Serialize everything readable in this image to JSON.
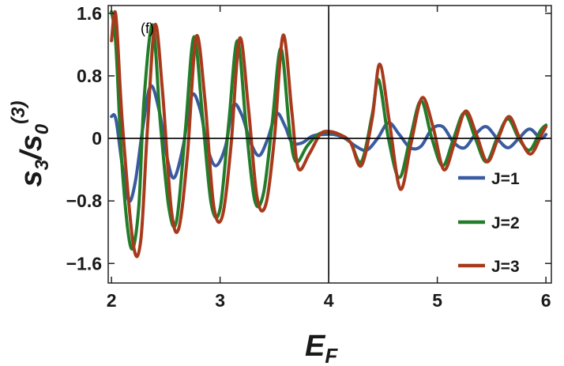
{
  "chart_data": {
    "type": "line",
    "panel_label": "(f)",
    "xlabel": "E",
    "xlabel_sub": "F",
    "ylabel_main": "s",
    "ylabel_sub1": "3",
    "ylabel_slash": "/s",
    "ylabel_sub2": "0",
    "ylabel_sup": "(3)",
    "xlim": [
      1.97,
      6.05
    ],
    "ylim": [
      -1.85,
      1.7
    ],
    "xticks": [
      2,
      3,
      4,
      5,
      6
    ],
    "xtick_labels": [
      "2",
      "3",
      "4",
      "5",
      "6"
    ],
    "yticks": [
      1.6,
      0.8,
      0,
      -0.8,
      -1.6
    ],
    "ytick_labels": [
      "1.6",
      "0.8",
      "0",
      "−0.8",
      "−1.6"
    ],
    "vline_x": 4,
    "hline_y": 0,
    "legend_position": "right",
    "series": [
      {
        "name": "J=1",
        "color": "#3a5ba0",
        "x": [
          2.0,
          2.04,
          2.1,
          2.16,
          2.22,
          2.29,
          2.36,
          2.44,
          2.52,
          2.58,
          2.66,
          2.74,
          2.82,
          2.88,
          2.96,
          3.05,
          3.12,
          3.2,
          3.28,
          3.36,
          3.44,
          3.52,
          3.6,
          3.66,
          3.75,
          3.85,
          3.95,
          4.05,
          4.15,
          4.25,
          4.35,
          4.45,
          4.55,
          4.65,
          4.75,
          4.85,
          4.95,
          5.05,
          5.15,
          5.25,
          5.35,
          5.45,
          5.55,
          5.65,
          5.75,
          5.85,
          5.95,
          6.0
        ],
        "y": [
          0.28,
          0.25,
          -0.35,
          -0.8,
          -0.55,
          0.15,
          0.67,
          0.35,
          -0.3,
          -0.5,
          -0.1,
          0.55,
          0.35,
          -0.1,
          -0.35,
          -0.1,
          0.42,
          0.3,
          -0.05,
          -0.22,
          0.0,
          0.32,
          0.15,
          -0.05,
          -0.06,
          0.03,
          0.05,
          0.05,
          0.0,
          -0.1,
          -0.15,
          0.0,
          0.2,
          0.05,
          -0.12,
          -0.1,
          0.12,
          0.15,
          -0.05,
          -0.12,
          0.05,
          0.15,
          0.0,
          -0.12,
          0.0,
          0.12,
          0.0,
          0.05
        ]
      },
      {
        "name": "J=2",
        "color": "#227d2a",
        "x": [
          2.0,
          2.04,
          2.1,
          2.18,
          2.25,
          2.3,
          2.38,
          2.45,
          2.53,
          2.6,
          2.68,
          2.76,
          2.84,
          2.92,
          3.0,
          3.08,
          3.16,
          3.24,
          3.32,
          3.4,
          3.48,
          3.56,
          3.64,
          3.7,
          3.8,
          3.9,
          4.0,
          4.1,
          4.2,
          4.3,
          4.4,
          4.46,
          4.55,
          4.65,
          4.75,
          4.85,
          4.95,
          5.05,
          5.15,
          5.25,
          5.35,
          5.45,
          5.55,
          5.65,
          5.75,
          5.85,
          5.95,
          6.0
        ],
        "y": [
          1.62,
          1.2,
          -0.4,
          -1.4,
          -0.9,
          0.5,
          1.45,
          0.2,
          -0.9,
          -1.05,
          0.1,
          1.3,
          0.25,
          -0.85,
          -0.9,
          0.2,
          1.25,
          0.15,
          -0.8,
          -0.7,
          0.2,
          1.15,
          0.1,
          -0.3,
          -0.1,
          0.05,
          0.08,
          0.05,
          -0.05,
          -0.3,
          0.3,
          0.75,
          0.0,
          -0.5,
          0.0,
          0.48,
          0.0,
          -0.35,
          0.0,
          0.33,
          0.0,
          -0.3,
          0.0,
          0.25,
          0.0,
          -0.15,
          0.1,
          0.17
        ]
      },
      {
        "name": "J=3",
        "color": "#a83a1c",
        "x": [
          2.0,
          2.04,
          2.1,
          2.2,
          2.27,
          2.33,
          2.4,
          2.47,
          2.55,
          2.62,
          2.7,
          2.78,
          2.86,
          2.94,
          3.02,
          3.1,
          3.18,
          3.26,
          3.34,
          3.42,
          3.5,
          3.58,
          3.66,
          3.72,
          3.82,
          3.92,
          4.0,
          4.1,
          4.2,
          4.3,
          4.4,
          4.47,
          4.56,
          4.66,
          4.76,
          4.86,
          4.96,
          5.06,
          5.16,
          5.26,
          5.36,
          5.46,
          5.56,
          5.66,
          5.76,
          5.86,
          5.96,
          6.0
        ],
        "y": [
          1.25,
          1.58,
          0.2,
          -1.35,
          -1.3,
          0.1,
          1.45,
          0.6,
          -0.9,
          -1.15,
          -0.2,
          1.3,
          0.5,
          -0.85,
          -1.0,
          -0.1,
          1.28,
          0.4,
          -0.75,
          -0.85,
          0.0,
          1.32,
          0.35,
          -0.38,
          -0.2,
          0.05,
          0.09,
          0.05,
          -0.05,
          -0.35,
          0.25,
          0.95,
          0.2,
          -0.65,
          -0.05,
          0.52,
          0.15,
          -0.4,
          -0.05,
          0.35,
          0.05,
          -0.3,
          0.0,
          0.28,
          0.0,
          -0.2,
          0.05,
          0.15
        ]
      }
    ]
  }
}
